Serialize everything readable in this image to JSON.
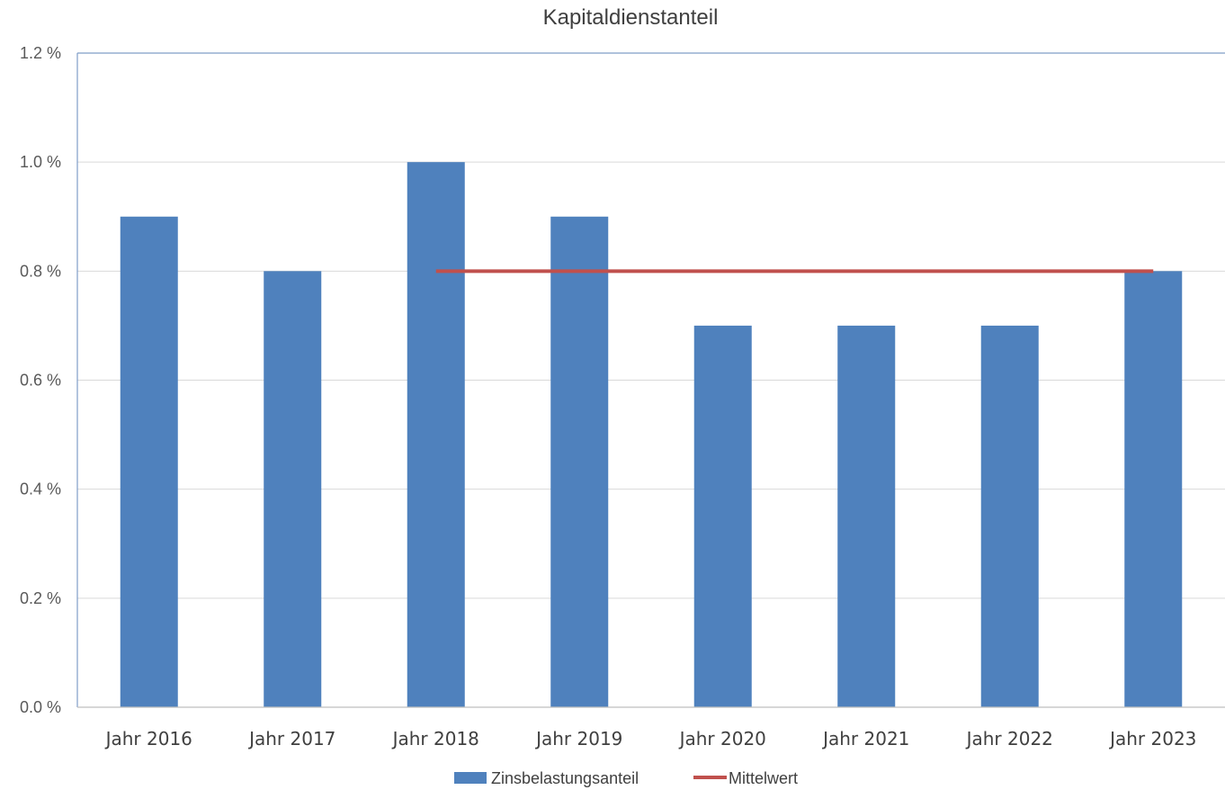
{
  "chart_data": {
    "type": "bar",
    "title": "Kapitaldienstanteil",
    "categories": [
      "Jahr 2016",
      "Jahr 2017",
      "Jahr 2018",
      "Jahr 2019",
      "Jahr 2020",
      "Jahr 2021",
      "Jahr 2022",
      "Jahr 2023"
    ],
    "series": [
      {
        "name": "Zinsbelastungsanteil",
        "kind": "bar",
        "color": "#4f81bd",
        "values": [
          0.9,
          0.8,
          1.0,
          0.9,
          0.7,
          0.7,
          0.7,
          0.8
        ]
      },
      {
        "name": "Mittelwert",
        "kind": "line",
        "color": "#c0504d",
        "values": [
          null,
          null,
          0.8,
          0.8,
          0.8,
          0.8,
          0.8,
          0.8
        ]
      }
    ],
    "yticks": [
      "0.0 %",
      "0.2 %",
      "0.4 %",
      "0.6 %",
      "0.8 %",
      "1.0 %",
      "1.2 %"
    ],
    "ylim": [
      0,
      1.2
    ],
    "xlabel": "",
    "ylabel": "",
    "grid": true,
    "legend_position": "bottom"
  }
}
